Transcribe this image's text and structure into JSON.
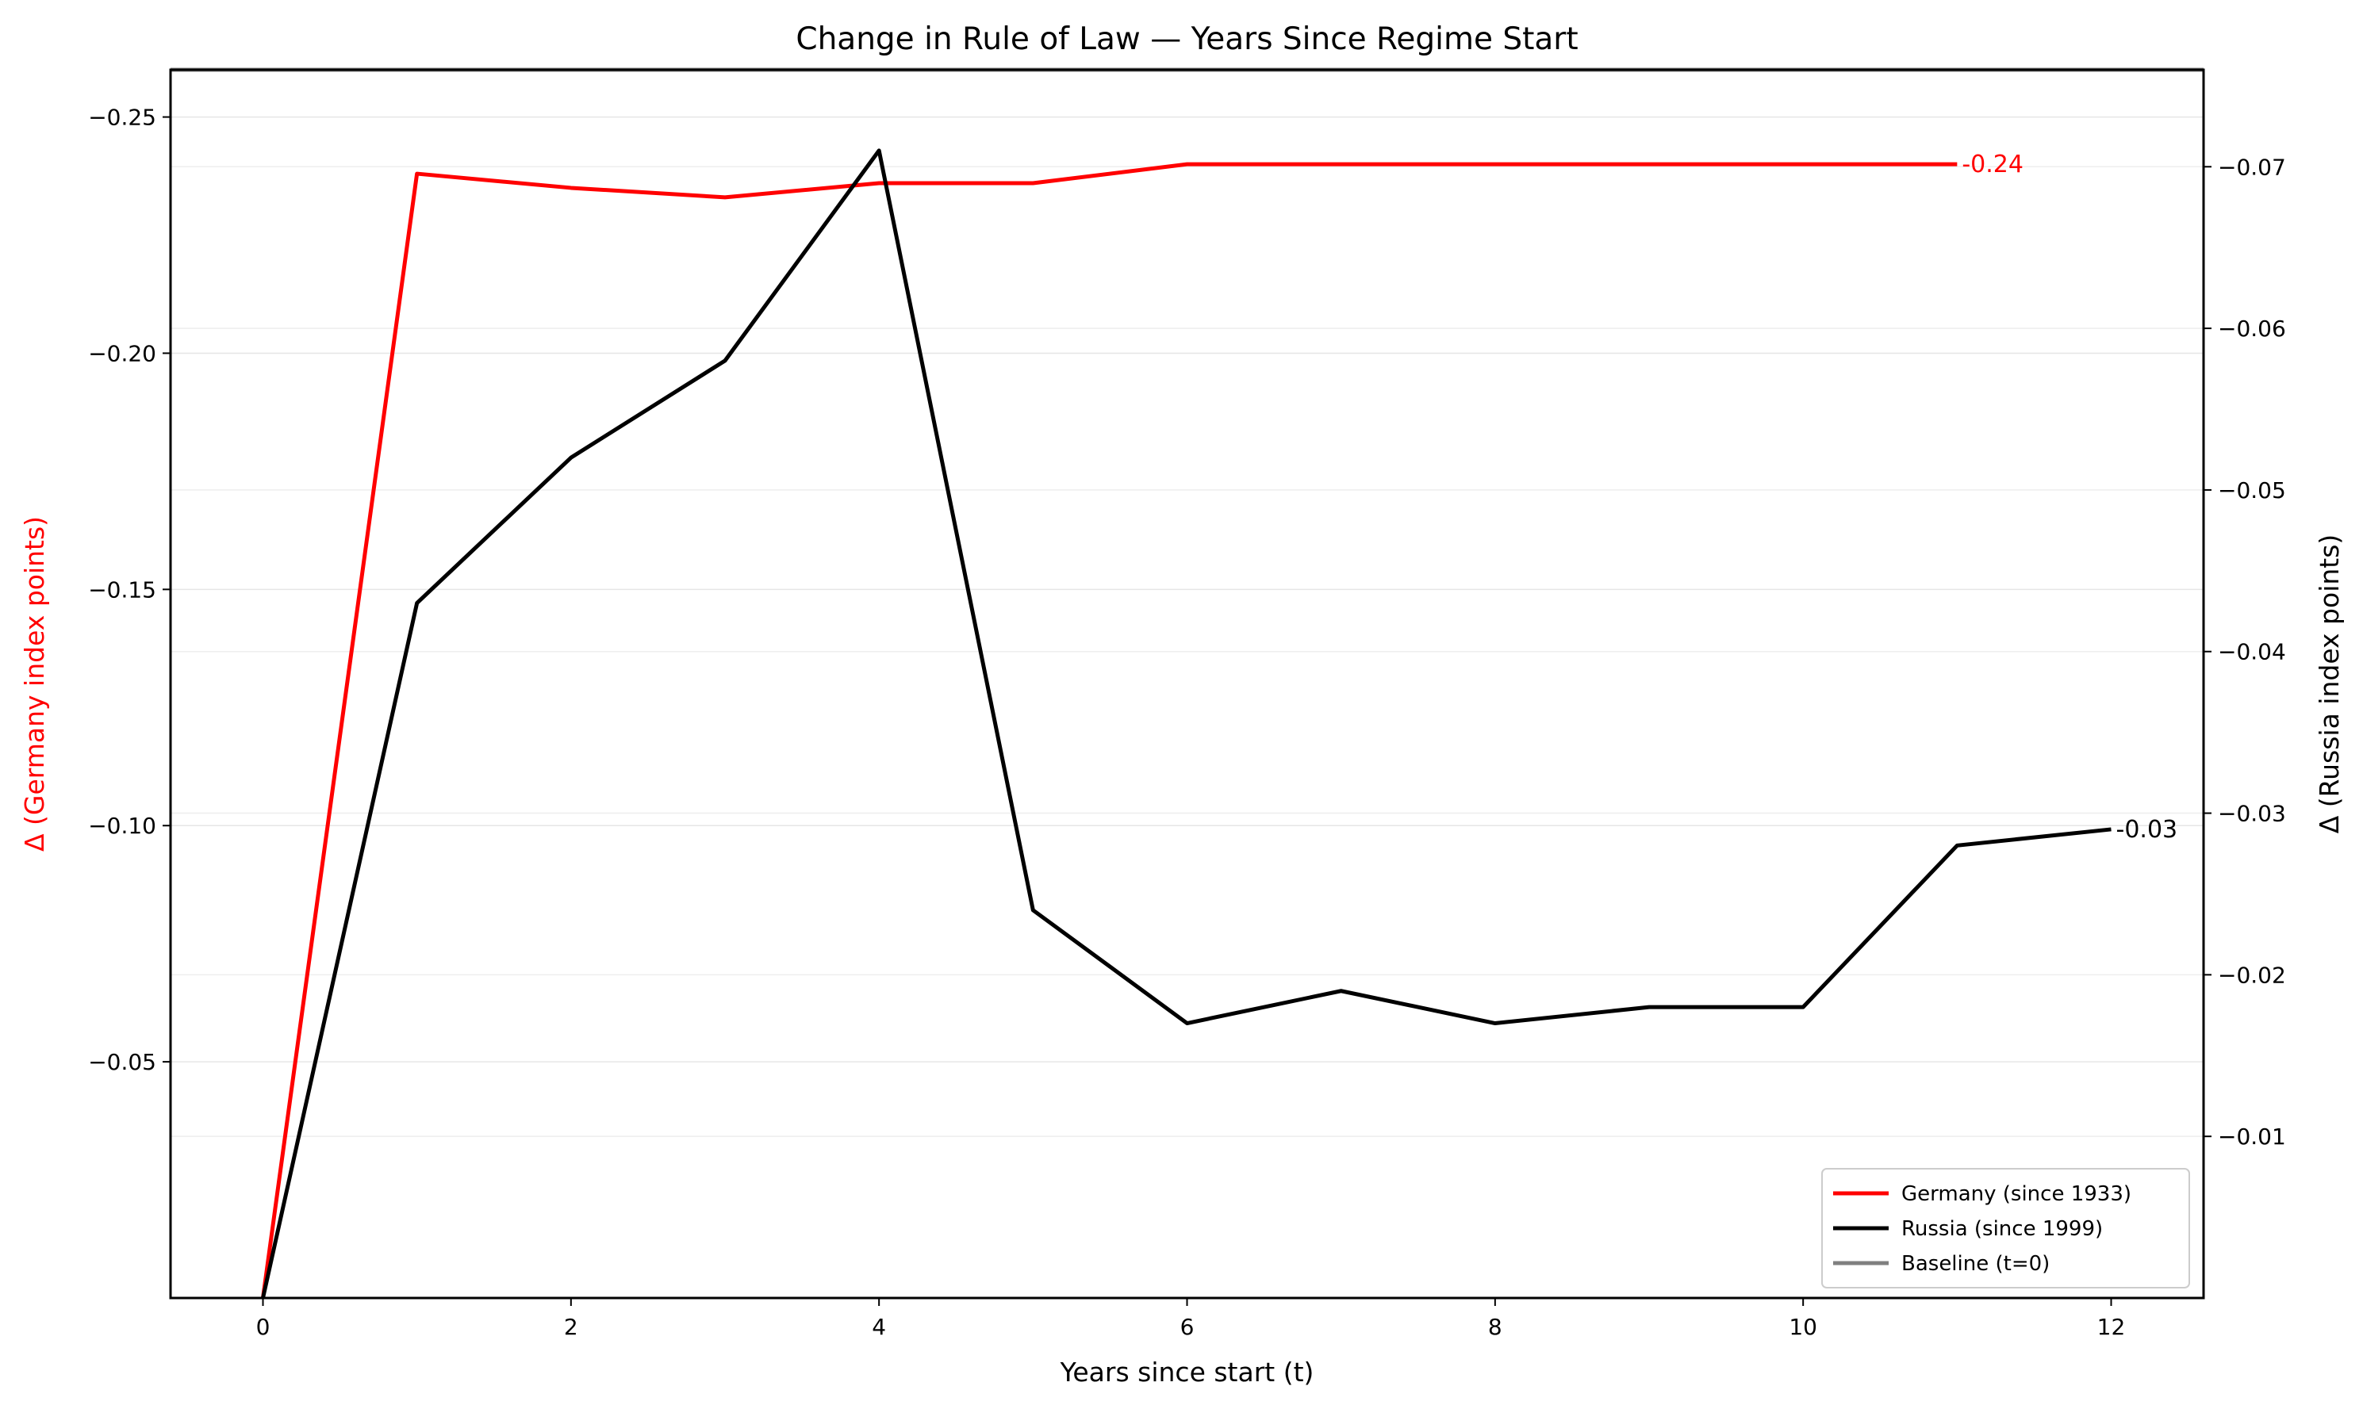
{
  "chart_data": {
    "type": "line",
    "title": "Change in Rule of Law — Years Since Regime Start",
    "xlabel": "Years since start (t)",
    "ylabel_left": "Δ (Germany index points)",
    "ylabel_right": "Δ (Russia index points)",
    "xlim": [
      -0.6,
      12.6
    ],
    "ylim_left": [
      0.0,
      -0.26
    ],
    "ylim_right": [
      0.0,
      -0.076
    ],
    "x_ticks": [
      0,
      2,
      4,
      6,
      8,
      10,
      12
    ],
    "x_tick_labels": [
      "0",
      "2",
      "4",
      "6",
      "8",
      "10",
      "12"
    ],
    "y_left_ticks": [
      -0.05,
      -0.1,
      -0.15,
      -0.2,
      -0.25
    ],
    "y_left_tick_labels": [
      "−0.05",
      "−0.10",
      "−0.15",
      "−0.20",
      "−0.25"
    ],
    "y_right_ticks": [
      -0.01,
      -0.02,
      -0.03,
      -0.04,
      -0.05,
      -0.06,
      -0.07
    ],
    "y_right_tick_labels": [
      "−0.01",
      "−0.02",
      "−0.03",
      "−0.04",
      "−0.05",
      "−0.06",
      "−0.07"
    ],
    "grid": "horizontal, light",
    "legend_position": "lower-right",
    "series": [
      {
        "name": "Germany (since 1933)",
        "axis": "left",
        "color": "#ff0000",
        "x": [
          0,
          1,
          2,
          3,
          4,
          5,
          6,
          7,
          8,
          9,
          10,
          11
        ],
        "values": [
          0.0,
          -0.238,
          -0.235,
          -0.233,
          -0.236,
          -0.236,
          -0.24,
          -0.24,
          -0.24,
          -0.24,
          -0.24,
          -0.24
        ],
        "end_label": "-0.24"
      },
      {
        "name": "Russia (since 1999)",
        "axis": "right",
        "color": "#000000",
        "x": [
          0,
          1,
          2,
          3,
          4,
          5,
          6,
          7,
          8,
          9,
          10,
          11,
          12
        ],
        "values": [
          0.0,
          -0.043,
          -0.052,
          -0.058,
          -0.071,
          -0.024,
          -0.017,
          -0.019,
          -0.017,
          -0.018,
          -0.018,
          -0.028,
          -0.029
        ],
        "end_label": "-0.03"
      }
    ],
    "baseline": {
      "name": "Baseline (t=0)",
      "color": "#808080",
      "value": 0
    }
  }
}
